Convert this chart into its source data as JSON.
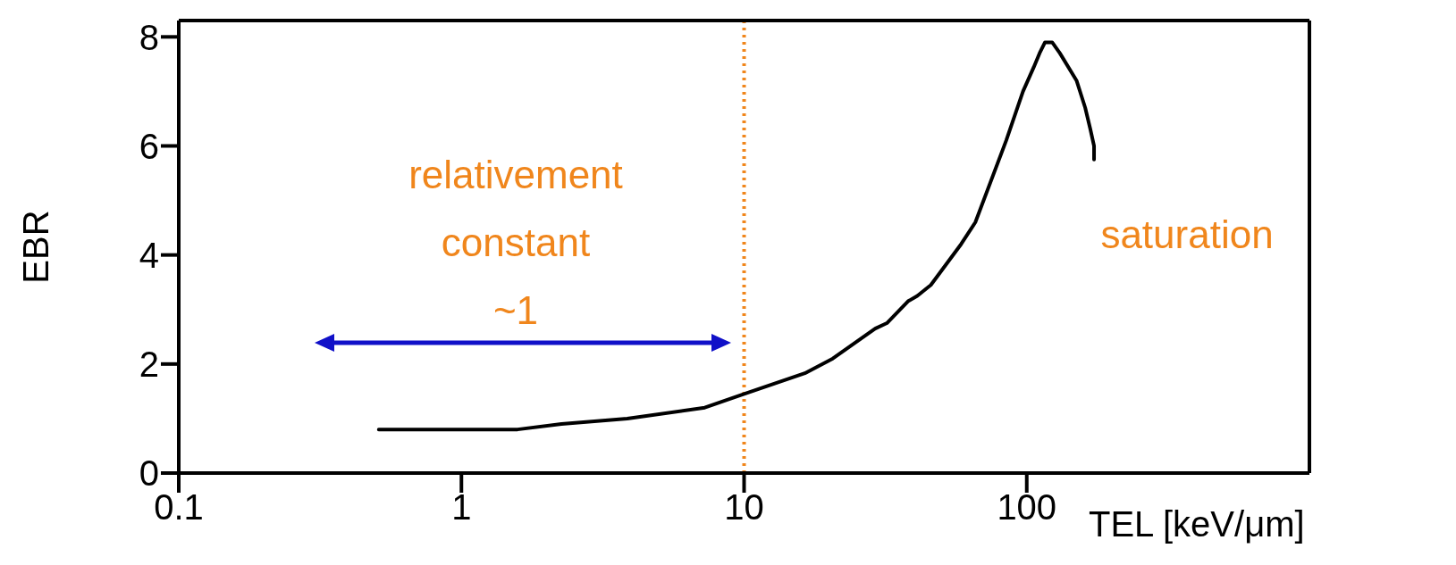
{
  "chart_data": {
    "type": "line",
    "xlabel": "TEL [keV/μm]",
    "ylabel": "EBR",
    "log": "x",
    "xlim": [
      0.1,
      1000
    ],
    "xticks": [
      0.1,
      1,
      10,
      100
    ],
    "ylim": [
      0,
      8.3
    ],
    "yticks": [
      0,
      2,
      4,
      6,
      8
    ],
    "marker": "none",
    "line_style": "solid",
    "series": [
      {
        "color": "#000000",
        "x": [
          0.51,
          1.58,
          2.26,
          3.86,
          7.26,
          10,
          16.4,
          20.6,
          29.1,
          32,
          38,
          41,
          45.8,
          58.6,
          65.8,
          84.6,
          97,
          106,
          111,
          116,
          123,
          131,
          150,
          161,
          168,
          173,
          173
        ],
        "values": [
          0.8,
          0.8,
          0.9,
          1.0,
          1.2,
          1.45,
          1.83,
          2.1,
          2.65,
          2.75,
          3.15,
          3.25,
          3.45,
          4.2,
          4.6,
          6.1,
          7.0,
          7.45,
          7.7,
          7.9,
          7.9,
          7.7,
          7.2,
          6.7,
          6.3,
          6.0,
          5.75
        ]
      }
    ],
    "ref_lines": [
      {
        "axis": "x",
        "value": 10,
        "color": "#f0861c",
        "line_style": "dotted"
      }
    ],
    "annotations": [
      "relativement\nconstant\n~1",
      "saturation"
    ]
  }
}
